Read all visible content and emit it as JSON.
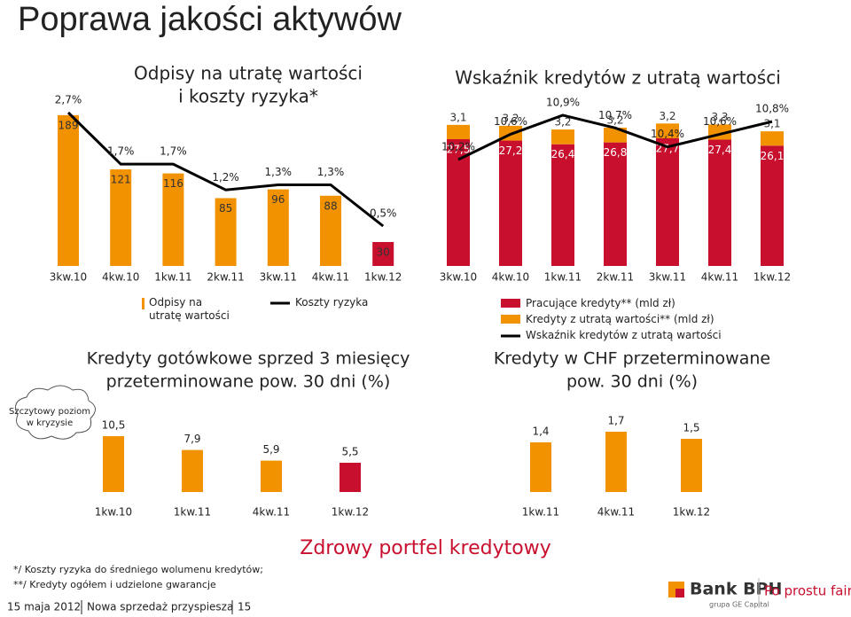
{
  "title": "Poprawa jakości aktywów",
  "chart_data": [
    {
      "type": "combo",
      "title": [
        "Odpisy na utratę wartości",
        "i koszty ryzyka*"
      ],
      "categories": [
        "3kw.10",
        "4kw.10",
        "1kw.11",
        "2kw.11",
        "3kw.11",
        "4kw.11",
        "1kw.12"
      ],
      "series": [
        {
          "name": "Odpisy na utratę wartości",
          "type": "bar",
          "color": "#f39200",
          "colors": [
            "#f39200",
            "#f39200",
            "#f39200",
            "#f39200",
            "#f39200",
            "#f39200",
            "#c8102e"
          ],
          "values": [
            189,
            121,
            116,
            85,
            96,
            88,
            30
          ]
        },
        {
          "name": "Koszty ryzyka",
          "type": "line",
          "color": "#000000",
          "values": [
            2.7,
            1.7,
            1.7,
            1.2,
            1.3,
            1.3,
            0.5
          ],
          "value_labels": [
            "2,7%",
            "1,7%",
            "1,7%",
            "1,2%",
            "1,3%",
            "1,3%",
            "0,5%"
          ]
        }
      ]
    },
    {
      "type": "combo",
      "title": [
        "Wskaźnik kredytów z utratą wartości"
      ],
      "stacked": true,
      "categories": [
        "3kw.10",
        "4kw.10",
        "1kw.11",
        "2kw.11",
        "3kw.11",
        "4kw.11",
        "1kw.12"
      ],
      "series": [
        {
          "name": "Pracujące kredyty** (mld zł)",
          "type": "bar",
          "color": "#c8102e",
          "values": [
            27.5,
            27.2,
            26.4,
            26.8,
            27.7,
            27.4,
            26.1
          ],
          "value_labels": [
            "27,5",
            "27,2",
            "26,4",
            "26,8",
            "27,7",
            "27,4",
            "26,1"
          ]
        },
        {
          "name": "Kredyty z utratą wartości** (mld zł)",
          "type": "bar",
          "color": "#f39200",
          "values": [
            3.1,
            3.2,
            3.2,
            3.2,
            3.2,
            3.3,
            3.1
          ],
          "value_labels": [
            "3,1",
            "3,2",
            "3,2",
            "3,2",
            "3,2",
            "3,3",
            "3,1"
          ]
        },
        {
          "name": "Wskaźnik kredytów z utratą wartości",
          "type": "line",
          "color": "#000000",
          "values": [
            10.2,
            10.6,
            10.9,
            10.7,
            10.4,
            10.6,
            10.8
          ],
          "value_labels": [
            "10,2%",
            "10,6%",
            "10,9%",
            "10,7%",
            "10,4%",
            "10,6%",
            "10,8%"
          ]
        }
      ]
    },
    {
      "type": "bar",
      "title": [
        "Kredyty gotówkowe sprzed 3 miesięcy",
        "przeterminowane pow. 30 dni (%)"
      ],
      "categories": [
        "1kw.10",
        "1kw.11",
        "4kw.11",
        "1kw.12"
      ],
      "values": [
        10.5,
        7.9,
        5.9,
        5.5
      ],
      "value_labels": [
        "10,5",
        "7,9",
        "5,9",
        "5,5"
      ],
      "colors": [
        "#f39200",
        "#f39200",
        "#f39200",
        "#c8102e"
      ],
      "annotation": [
        "Szczytowy poziom",
        "w kryzysie"
      ]
    },
    {
      "type": "bar",
      "title": [
        "Kredyty w CHF przeterminowane",
        "pow. 30 dni (%)"
      ],
      "categories": [
        "1kw.11",
        "4kw.11",
        "1kw.12"
      ],
      "values": [
        1.4,
        1.7,
        1.5
      ],
      "value_labels": [
        "1,4",
        "1,7",
        "1,5"
      ],
      "colors": [
        "#f39200",
        "#f39200",
        "#f39200"
      ]
    }
  ],
  "footnotes": [
    "*/ Koszty ryzyka do średniego wolumenu kredytów;",
    "**/ Kredyty ogółem i udzielone gwarancje"
  ],
  "slogan": "Zdrowy portfel kredytowy",
  "footer": {
    "date": "15 maja 2012",
    "section": "Nowa sprzedaż przyspiesza",
    "page": 15
  },
  "logo": {
    "name": "Bank BPH",
    "group": "grupa GE Capital",
    "tagline": "Po prostu fair"
  }
}
